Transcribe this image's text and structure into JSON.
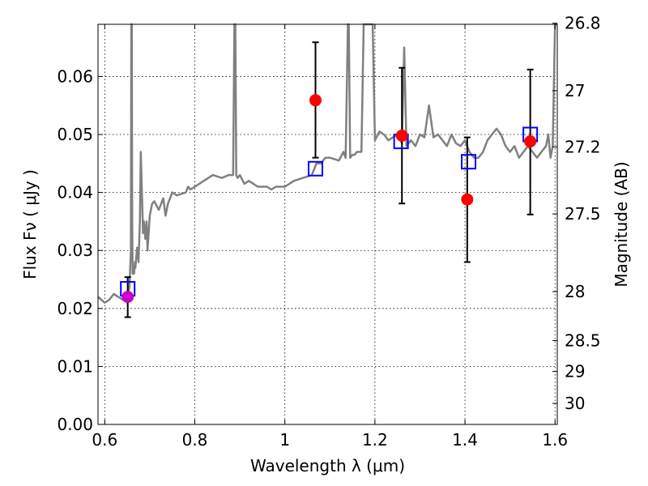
{
  "chart_data": {
    "type": "scatter",
    "xlabel": "Wavelength  λ (μm)",
    "ylabel": "Flux  Fν  ( μJy )",
    "y2label": "Magnitude (AB)",
    "xlim": [
      0.585,
      1.605
    ],
    "ylim": [
      0.0,
      0.069
    ],
    "x_ticks": [
      0.6,
      0.8,
      1.0,
      1.2,
      1.4,
      1.6
    ],
    "x_tick_labels": [
      "0.6",
      "0.8",
      "1",
      "1.2",
      "1.4",
      "1.6"
    ],
    "y_ticks": [
      0.0,
      0.01,
      0.02,
      0.03,
      0.04,
      0.05,
      0.06
    ],
    "y_tick_labels": [
      "0.00",
      "0.01",
      "0.02",
      "0.03",
      "0.04",
      "0.05",
      "0.06"
    ],
    "y2_ticks": [
      {
        "label": "26.8",
        "value": 26.8
      },
      {
        "label": "27",
        "value": 27.0
      },
      {
        "label": "27.2",
        "value": 27.2
      },
      {
        "label": "27.5",
        "value": 27.5
      },
      {
        "label": "28",
        "value": 28.0
      },
      {
        "label": "28.5",
        "value": 28.5
      },
      {
        "label": "29",
        "value": 29.0
      },
      {
        "label": "30",
        "value": 30.0
      }
    ],
    "grid": true,
    "legend": false,
    "colors": {
      "model": "#808080",
      "observed": "#ff0000",
      "model_photometry": "#0000ff",
      "highlighted": "#cc00cc",
      "errorbar": "#000000"
    },
    "model_spectrum": {
      "x": [
        0.585,
        0.6,
        0.61,
        0.62,
        0.63,
        0.64,
        0.645,
        0.65,
        0.655,
        0.658,
        0.659,
        0.66,
        0.661,
        0.662,
        0.664,
        0.665,
        0.667,
        0.668,
        0.67,
        0.672,
        0.675,
        0.678,
        0.68,
        0.685,
        0.687,
        0.69,
        0.693,
        0.695,
        0.7,
        0.705,
        0.71,
        0.72,
        0.73,
        0.735,
        0.74,
        0.745,
        0.75,
        0.76,
        0.78,
        0.785,
        0.79,
        0.8,
        0.82,
        0.84,
        0.86,
        0.875,
        0.885,
        0.888,
        0.89,
        0.892,
        0.895,
        0.9,
        0.91,
        0.92,
        0.94,
        0.96,
        0.97,
        0.98,
        1.0,
        1.02,
        1.04,
        1.06,
        1.07,
        1.08,
        1.09,
        1.1,
        1.12,
        1.13,
        1.135,
        1.14,
        1.142,
        1.145,
        1.15,
        1.155,
        1.16,
        1.17,
        1.175,
        1.18,
        1.182,
        1.185,
        1.19,
        1.195,
        1.2,
        1.21,
        1.22,
        1.23,
        1.24,
        1.25,
        1.26,
        1.265,
        1.27,
        1.28,
        1.29,
        1.3,
        1.31,
        1.32,
        1.33,
        1.34,
        1.35,
        1.36,
        1.37,
        1.38,
        1.39,
        1.4,
        1.41,
        1.42,
        1.43,
        1.44,
        1.45,
        1.46,
        1.47,
        1.48,
        1.49,
        1.5,
        1.51,
        1.52,
        1.53,
        1.54,
        1.55,
        1.56,
        1.57,
        1.58,
        1.585,
        1.59,
        1.595,
        1.6,
        1.605
      ],
      "y": [
        0.022,
        0.021,
        0.0215,
        0.0225,
        0.022,
        0.0215,
        0.0225,
        0.021,
        0.024,
        0.03,
        0.069,
        0.069,
        0.035,
        0.026,
        0.027,
        0.026,
        0.028,
        0.027,
        0.029,
        0.0305,
        0.028,
        0.035,
        0.047,
        0.033,
        0.035,
        0.032,
        0.035,
        0.03,
        0.036,
        0.038,
        0.0385,
        0.037,
        0.039,
        0.036,
        0.038,
        0.039,
        0.04,
        0.0395,
        0.04,
        0.041,
        0.0405,
        0.041,
        0.042,
        0.043,
        0.0425,
        0.043,
        0.043,
        0.069,
        0.069,
        0.043,
        0.0425,
        0.043,
        0.0415,
        0.042,
        0.041,
        0.041,
        0.0405,
        0.041,
        0.041,
        0.042,
        0.0425,
        0.043,
        0.045,
        0.045,
        0.046,
        0.046,
        0.0455,
        0.047,
        0.046,
        0.069,
        0.069,
        0.046,
        0.0465,
        0.0465,
        0.047,
        0.047,
        0.069,
        0.069,
        0.069,
        0.069,
        0.069,
        0.069,
        0.049,
        0.0505,
        0.05,
        0.049,
        0.0495,
        0.05,
        0.0485,
        0.065,
        0.048,
        0.049,
        0.048,
        0.05,
        0.0495,
        0.055,
        0.0495,
        0.05,
        0.049,
        0.048,
        0.05,
        0.0485,
        0.048,
        0.049,
        0.047,
        0.046,
        0.046,
        0.047,
        0.049,
        0.05,
        0.051,
        0.05,
        0.048,
        0.047,
        0.048,
        0.046,
        0.047,
        0.048,
        0.047,
        0.046,
        0.047,
        0.048,
        0.05,
        0.046,
        0.048,
        0.069,
        0.069
      ]
    },
    "observed": [
      {
        "x": 0.651,
        "y": 0.022,
        "yerr_low": 0.0185,
        "yerr_high": 0.0254,
        "highlight": true
      },
      {
        "x": 1.068,
        "y": 0.0559,
        "yerr_low": 0.046,
        "yerr_high": 0.0659,
        "highlight": false
      },
      {
        "x": 1.26,
        "y": 0.0498,
        "yerr_low": 0.0381,
        "yerr_high": 0.0615,
        "highlight": false
      },
      {
        "x": 1.405,
        "y": 0.0388,
        "yerr_low": 0.028,
        "yerr_high": 0.0495,
        "highlight": false
      },
      {
        "x": 1.545,
        "y": 0.0488,
        "yerr_low": 0.0362,
        "yerr_high": 0.0612,
        "highlight": false
      }
    ],
    "model_photometry": [
      {
        "x": 0.651,
        "y": 0.0234
      },
      {
        "x": 1.068,
        "y": 0.0441
      },
      {
        "x": 1.258,
        "y": 0.0488
      },
      {
        "x": 1.408,
        "y": 0.0453
      },
      {
        "x": 1.545,
        "y": 0.05
      }
    ]
  }
}
